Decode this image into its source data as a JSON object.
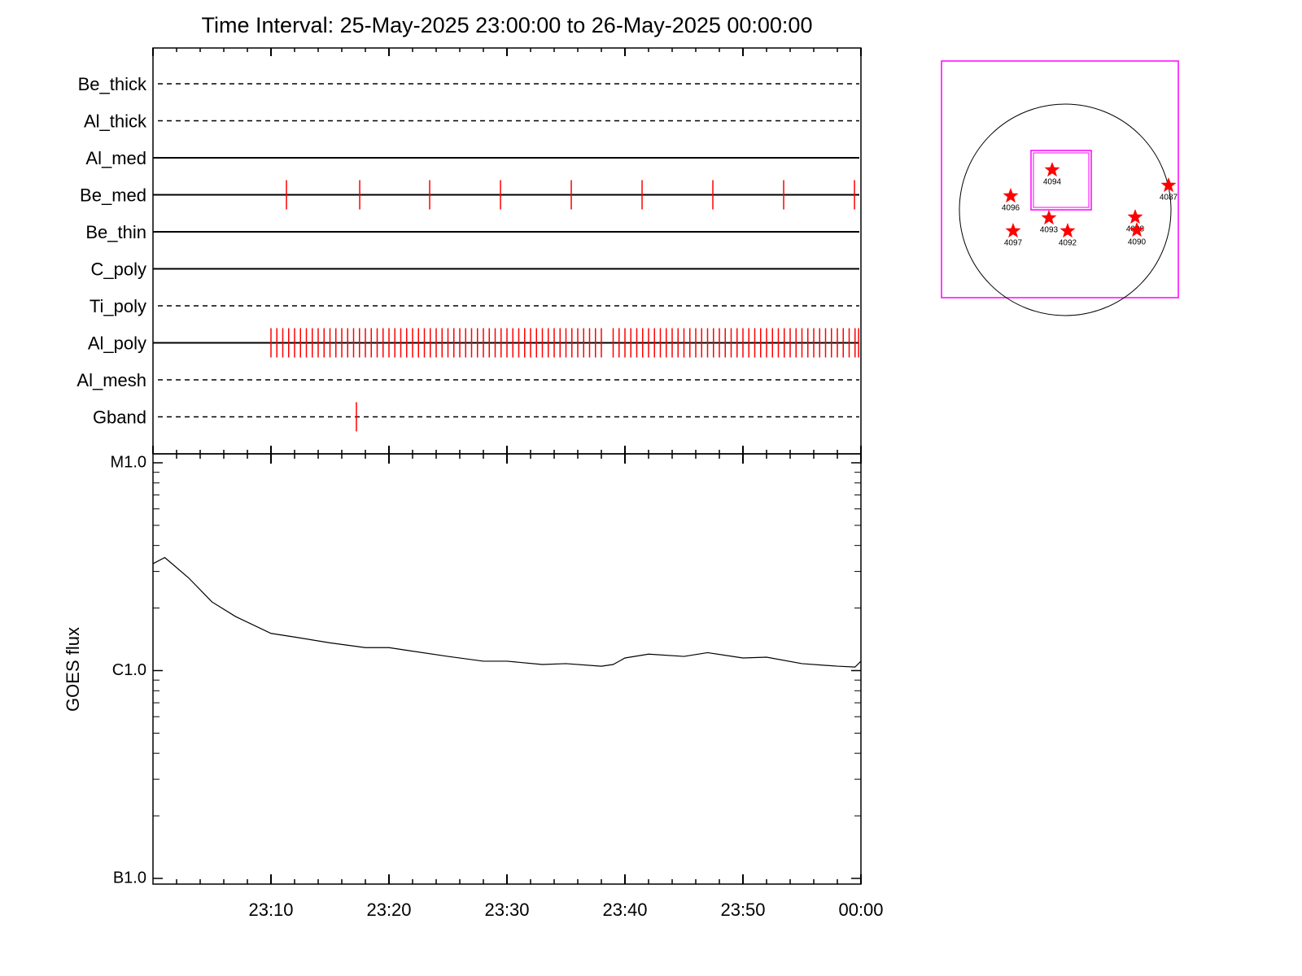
{
  "chart_data": [
    {
      "type": "timeline",
      "title": "Time Interval: 25-May-2025 23:00:00 to 26-May-2025 00:00:00",
      "xlim": [
        0,
        60
      ],
      "xticks": [
        0,
        10,
        20,
        30,
        40,
        50,
        60
      ],
      "xminorticks": [
        2,
        4,
        6,
        8,
        12,
        14,
        16,
        18,
        22,
        24,
        26,
        28,
        32,
        34,
        36,
        38,
        42,
        44,
        46,
        48,
        52,
        54,
        56,
        58
      ],
      "color": "#ff0000",
      "rows": [
        {
          "name": "Be_thick",
          "style": "dashed",
          "times": []
        },
        {
          "name": "Al_thick",
          "style": "dashed",
          "times": []
        },
        {
          "name": "Al_med",
          "style": "solid",
          "times": []
        },
        {
          "name": "Be_med",
          "style": "solid",
          "times": [
            11.31,
            17.52,
            23.45,
            29.45,
            35.45,
            41.45,
            47.45,
            53.45,
            59.45
          ]
        },
        {
          "name": "Be_thin",
          "style": "solid",
          "times": []
        },
        {
          "name": "C_poly",
          "style": "solid",
          "times": []
        },
        {
          "name": "Ti_poly",
          "style": "dashed",
          "times": []
        },
        {
          "name": "Al_poly",
          "style": "solid",
          "times": [
            10.0,
            10.5,
            11.0,
            11.5,
            12.0,
            12.5,
            13.0,
            13.5,
            14.0,
            14.5,
            15.0,
            15.5,
            16.0,
            16.5,
            17.0,
            17.5,
            18.0,
            18.5,
            19.0,
            19.5,
            20.0,
            20.5,
            21.0,
            21.5,
            22.0,
            22.5,
            23.0,
            23.5,
            24.0,
            24.5,
            25.0,
            25.5,
            26.0,
            26.5,
            27.0,
            27.5,
            28.0,
            28.5,
            29.0,
            29.5,
            30.0,
            30.5,
            31.0,
            31.5,
            32.0,
            32.5,
            33.0,
            33.5,
            34.0,
            34.5,
            35.0,
            35.5,
            36.0,
            36.5,
            37.0,
            37.5,
            38.0,
            39.0,
            39.5,
            40.0,
            40.5,
            41.0,
            41.5,
            42.0,
            42.5,
            43.0,
            43.5,
            44.0,
            44.5,
            45.0,
            45.5,
            46.0,
            46.5,
            47.0,
            47.5,
            48.0,
            48.5,
            49.0,
            49.5,
            50.0,
            50.5,
            51.0,
            51.5,
            52.0,
            52.5,
            53.0,
            53.5,
            54.0,
            54.5,
            55.0,
            55.5,
            56.0,
            56.5,
            57.0,
            57.5,
            58.0,
            58.5,
            59.0,
            59.5,
            59.8
          ]
        },
        {
          "name": "Al_mesh",
          "style": "dashed",
          "times": []
        },
        {
          "name": "Gband",
          "style": "dashed",
          "times": [
            17.24
          ]
        }
      ]
    },
    {
      "type": "line",
      "ylabel": "GOES flux",
      "log_scale": true,
      "color": "#000000",
      "x": [
        0,
        1,
        3,
        5,
        7,
        10,
        12,
        15,
        18,
        20,
        22,
        25,
        28,
        30,
        33,
        35,
        38,
        39,
        40,
        42,
        45,
        47,
        50,
        52,
        55,
        58,
        59.5,
        60
      ],
      "values": [
        3.27e-06,
        3.5e-06,
        2.8e-06,
        2.14e-06,
        1.82e-06,
        1.51e-06,
        1.45e-06,
        1.36e-06,
        1.29e-06,
        1.29e-06,
        1.24e-06,
        1.17e-06,
        1.11e-06,
        1.11e-06,
        1.07e-06,
        1.08e-06,
        1.05e-06,
        1.07e-06,
        1.15e-06,
        1.2e-06,
        1.17e-06,
        1.22e-06,
        1.15e-06,
        1.16e-06,
        1.08e-06,
        1.05e-06,
        1.04e-06,
        1.11e-06
      ],
      "xlim": [
        0,
        60
      ],
      "xticks": [
        {
          "value": 10,
          "label": "23:10"
        },
        {
          "value": 20,
          "label": "23:20"
        },
        {
          "value": 30,
          "label": "23:30"
        },
        {
          "value": 40,
          "label": "23:40"
        },
        {
          "value": 50,
          "label": "23:50"
        },
        {
          "value": 60,
          "label": "00:00"
        }
      ],
      "xminorticks": [
        2,
        4,
        6,
        8,
        12,
        14,
        16,
        18,
        22,
        24,
        26,
        28,
        32,
        34,
        36,
        38,
        42,
        44,
        46,
        48,
        52,
        54,
        56,
        58
      ],
      "ylim": [
        1e-07,
        1e-05
      ],
      "yticks": [
        {
          "value": 1e-07,
          "label": "B1.0"
        },
        {
          "value": 1e-06,
          "label": "C1.0"
        },
        {
          "value": 1e-05,
          "label": "M1.0"
        }
      ],
      "yminorticks": [
        2e-07,
        3e-07,
        4e-07,
        5e-07,
        6e-07,
        7e-07,
        8e-07,
        9e-07,
        2e-06,
        3e-06,
        4e-06,
        5e-06,
        6e-06,
        7e-06,
        8e-06,
        9e-06
      ]
    }
  ],
  "inset": {
    "active_regions": [
      "4094",
      "4096",
      "4097",
      "4093",
      "4092",
      "4088",
      "4090",
      "4087"
    ]
  }
}
